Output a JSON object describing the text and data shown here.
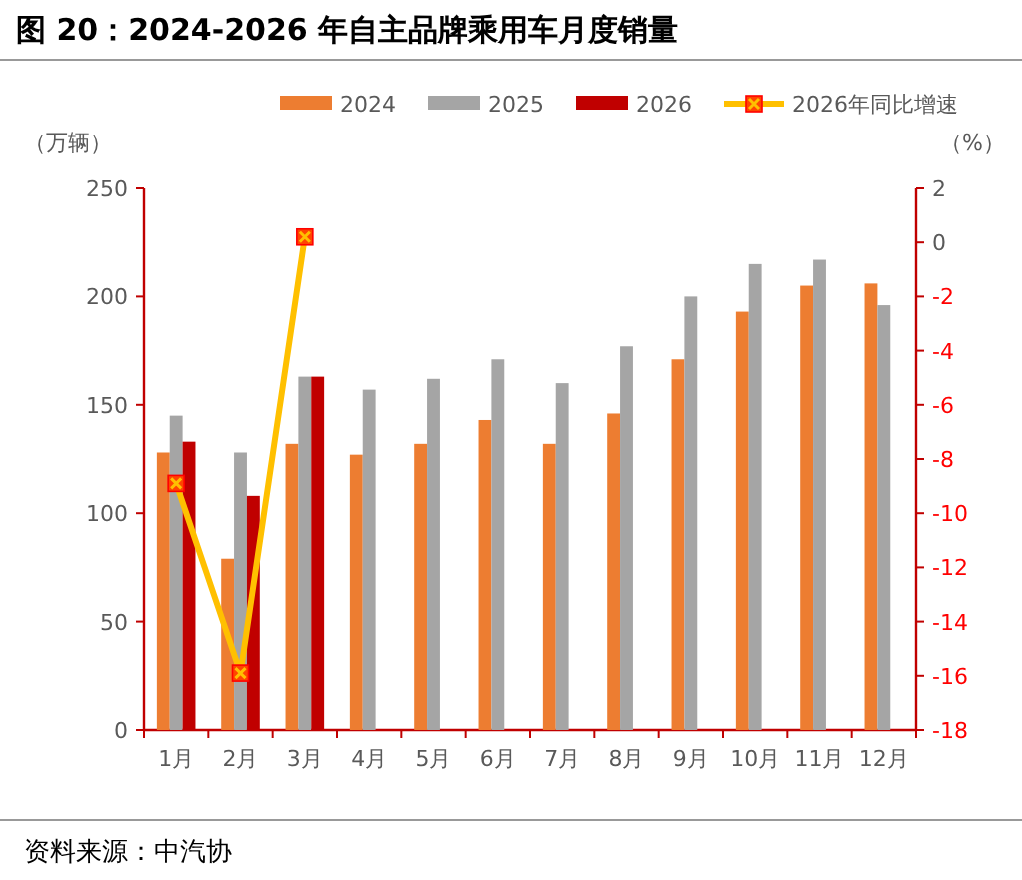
{
  "chart_data": {
    "type": "bar",
    "title": "图 20：2024-2026 年自主品牌乘用车月度销量",
    "ylabel": "（万辆）",
    "y2label": "（%）",
    "categories": [
      "1月",
      "2月",
      "3月",
      "4月",
      "5月",
      "6月",
      "7月",
      "8月",
      "9月",
      "10月",
      "11月",
      "12月"
    ],
    "series": [
      {
        "name": "2024",
        "color": "#ed7d31",
        "values": [
          128,
          79,
          132,
          127,
          132,
          143,
          132,
          146,
          171,
          193,
          205,
          206
        ]
      },
      {
        "name": "2025",
        "color": "#a5a5a5",
        "values": [
          145,
          128,
          163,
          157,
          162,
          171,
          160,
          177,
          200,
          215,
          217,
          196
        ]
      },
      {
        "name": "2026",
        "color": "#c00000",
        "values": [
          133,
          108,
          163,
          null,
          null,
          null,
          null,
          null,
          null,
          null,
          null,
          null
        ]
      },
      {
        "name": "2026年同比增速",
        "type": "line",
        "axis": "y2",
        "color": "#ffc000",
        "marker": "cross",
        "values": [
          -8.9,
          -15.9,
          0.2,
          null,
          null,
          null,
          null,
          null,
          null,
          null,
          null,
          null
        ]
      }
    ],
    "ylim": [
      0,
      250
    ],
    "yticks": [
      0,
      50,
      100,
      150,
      200,
      250
    ],
    "y2lim": [
      -18,
      2
    ],
    "y2ticks": [
      -18,
      -16,
      -14,
      -12,
      -10,
      -8,
      -6,
      -4,
      -2,
      0,
      2
    ],
    "legend": "top",
    "grid": false,
    "annotations": [
      "资料来源：中汽协"
    ]
  }
}
